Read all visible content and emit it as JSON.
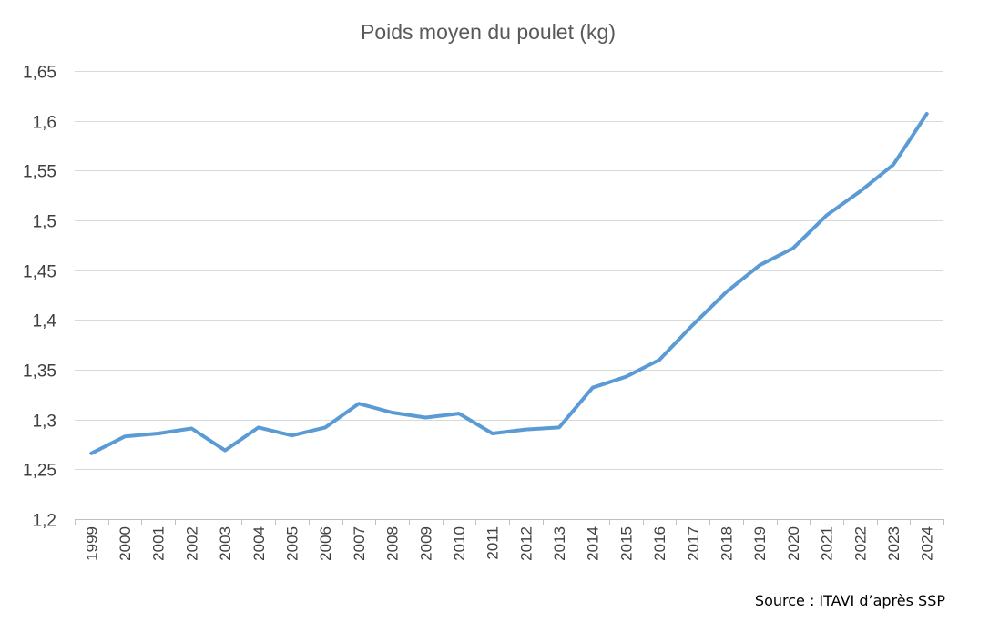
{
  "chart_data": {
    "type": "line",
    "title": "Poids moyen du poulet (kg)",
    "xlabel": "",
    "ylabel": "",
    "categories": [
      "1999",
      "2000",
      "2001",
      "2002",
      "2003",
      "2004",
      "2005",
      "2006",
      "2007",
      "2008",
      "2009",
      "2010",
      "2011",
      "2012",
      "2013",
      "2014",
      "2015",
      "2016",
      "2017",
      "2018",
      "2019",
      "2020",
      "2021",
      "2022",
      "2023",
      "2024"
    ],
    "series": [
      {
        "name": "Poids moyen du poulet (kg)",
        "values": [
          1.266,
          1.283,
          1.286,
          1.291,
          1.269,
          1.292,
          1.284,
          1.292,
          1.316,
          1.307,
          1.302,
          1.306,
          1.286,
          1.29,
          1.292,
          1.332,
          1.343,
          1.36,
          1.395,
          1.428,
          1.455,
          1.472,
          1.505,
          1.529,
          1.556,
          1.607
        ],
        "color": "#5b9bd5"
      }
    ],
    "ylim": [
      1.2,
      1.65
    ],
    "yticks": [
      "1,2",
      "1,25",
      "1,3",
      "1,35",
      "1,4",
      "1,45",
      "1,5",
      "1,55",
      "1,6",
      "1,65"
    ],
    "ytick_values": [
      1.2,
      1.25,
      1.3,
      1.35,
      1.4,
      1.45,
      1.5,
      1.55,
      1.6,
      1.65
    ],
    "grid": true,
    "legend": "none"
  },
  "source_note": "Source : ITAVI d’après SSP",
  "colors": {
    "line": "#5b9bd5",
    "grid": "#d9d9d9",
    "text": "#404040"
  }
}
